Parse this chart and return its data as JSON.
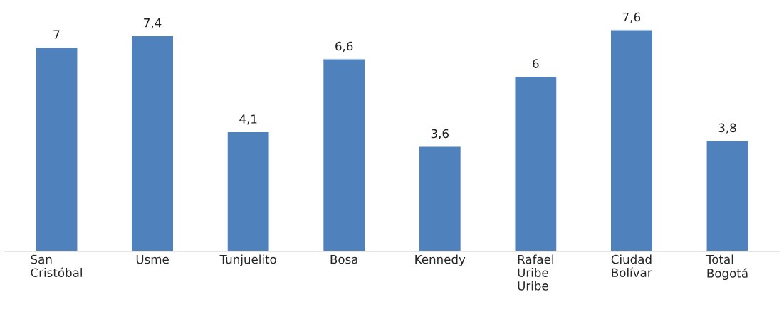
{
  "chart_data": {
    "type": "bar",
    "categories": [
      "San\nCristóbal",
      "Usme",
      "Tunjuelito",
      "Bosa",
      "Kennedy",
      "Rafael\nUribe\nUribe",
      "Ciudad\nBolívar",
      "Total\nBogotá"
    ],
    "values": [
      7,
      7.4,
      4.1,
      6.6,
      3.6,
      6,
      7.6,
      3.8
    ],
    "value_labels": [
      "7",
      "7,4",
      "4,1",
      "6,6",
      "3,6",
      "6",
      "7,6",
      "3,8"
    ],
    "color": "#4f81bd",
    "grid": false,
    "legend": false,
    "tick_labels": "x"
  }
}
